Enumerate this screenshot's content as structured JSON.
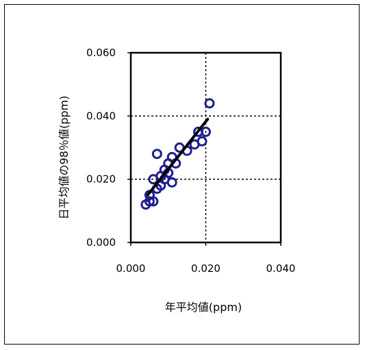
{
  "chart_data": {
    "type": "scatter",
    "title": "",
    "xlabel": "年平均値(ppm)",
    "ylabel": "日平均値の98％値(ppm)",
    "xlim": [
      0.0,
      0.04
    ],
    "ylim": [
      0.0,
      0.06
    ],
    "x_ticks": [
      "0.000",
      "0.020",
      "0.040"
    ],
    "y_ticks": [
      "0.000",
      "0.020",
      "0.040",
      "0.060"
    ],
    "grid": true,
    "legend": "none",
    "marker_color": "#1f1f8f",
    "trendline_color": "#000000",
    "series": [
      {
        "points": [
          [
            0.004,
            0.012
          ],
          [
            0.005,
            0.013
          ],
          [
            0.006,
            0.013
          ],
          [
            0.005,
            0.015
          ],
          [
            0.006,
            0.02
          ],
          [
            0.007,
            0.017
          ],
          [
            0.007,
            0.028
          ],
          [
            0.008,
            0.018
          ],
          [
            0.008,
            0.021
          ],
          [
            0.009,
            0.023
          ],
          [
            0.009,
            0.02
          ],
          [
            0.01,
            0.022
          ],
          [
            0.01,
            0.025
          ],
          [
            0.011,
            0.027
          ],
          [
            0.011,
            0.019
          ],
          [
            0.012,
            0.025
          ],
          [
            0.013,
            0.03
          ],
          [
            0.015,
            0.029
          ],
          [
            0.017,
            0.031
          ],
          [
            0.018,
            0.035
          ],
          [
            0.019,
            0.032
          ],
          [
            0.02,
            0.035
          ],
          [
            0.021,
            0.044
          ]
        ]
      }
    ],
    "trendline": {
      "x": [
        0.0045,
        0.0205
      ],
      "y": [
        0.015,
        0.039
      ]
    }
  }
}
